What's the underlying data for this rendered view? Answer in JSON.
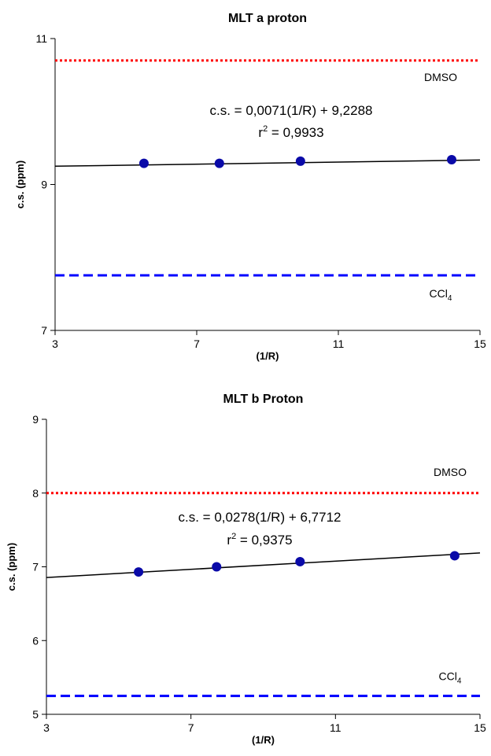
{
  "chart_data": [
    {
      "type": "scatter",
      "title": "MLT a proton",
      "x_label": "(1/R)",
      "y_label": "c.s. (ppm)",
      "xlim": [
        3,
        15
      ],
      "xticks": [
        3,
        7,
        11,
        15
      ],
      "ylim": [
        7,
        11
      ],
      "yticks": [
        7,
        9,
        11
      ],
      "series": [
        {
          "color": "#0a0aa8",
          "x": [
            5.51,
            7.64,
            9.93,
            14.2
          ],
          "values": [
            9.29,
            9.29,
            9.32,
            9.34
          ]
        }
      ],
      "trendline": {
        "slope": 0.0071,
        "intercept": 9.2288,
        "color": "#000000"
      },
      "equation": "c.s. = 0,0071(1/R) + 9,2288",
      "r2_label": {
        "base": "r",
        "sup": "2",
        "text": " = 0,9933"
      },
      "reference_lines": [
        {
          "label": {
            "base": "DMSO"
          },
          "value": 10.7,
          "color": "#ff0000",
          "style": "dotted"
        },
        {
          "label": {
            "base": "CCl",
            "sub": "4"
          },
          "value": 7.755,
          "color": "#0000ff",
          "style": "dashed"
        }
      ]
    },
    {
      "type": "scatter",
      "title": "MLT b Proton",
      "x_label": "(1/R)",
      "y_label": "c.s. (ppm)",
      "xlim": [
        3,
        15
      ],
      "xticks": [
        3,
        7,
        11,
        15
      ],
      "ylim": [
        5,
        9
      ],
      "yticks": [
        5,
        6,
        7,
        8,
        9
      ],
      "series": [
        {
          "color": "#0a0aa8",
          "x": [
            5.55,
            7.71,
            10.02,
            14.3
          ],
          "values": [
            6.93,
            7.0,
            7.07,
            7.15
          ]
        }
      ],
      "trendline": {
        "slope": 0.0278,
        "intercept": 6.7712,
        "color": "#000000"
      },
      "equation": "c.s. = 0,0278(1/R) + 6,7712",
      "r2_label": {
        "base": "r",
        "sup": "2",
        "text": " = 0,9375"
      },
      "reference_lines": [
        {
          "label": {
            "base": "DMSO"
          },
          "value": 8.0,
          "color": "#ff0000",
          "style": "dotted"
        },
        {
          "label": {
            "base": "CCl",
            "sub": "4"
          },
          "value": 5.25,
          "color": "#0000ff",
          "style": "dashed"
        }
      ]
    }
  ]
}
